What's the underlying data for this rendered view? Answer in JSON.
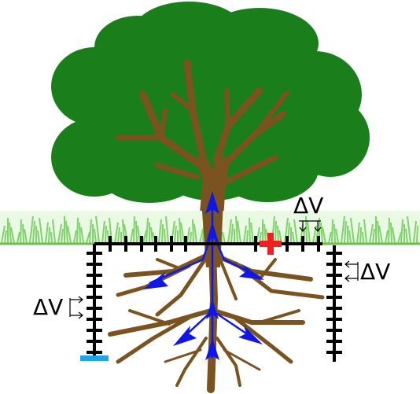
{
  "labels": {
    "dv_top": "ΔV",
    "dv_right": "ΔV",
    "dv_left": "ΔV"
  },
  "colors": {
    "canopy": "#1a7f1a",
    "trunk": "#7b5321",
    "grass": "#7fd36a",
    "ground_line": "#6bbf4e",
    "current_arrows": "#0f17e6",
    "plus_electrode": "#ee2020",
    "minus_electrode": "#22a4e8",
    "electrode_ruler": "#000000"
  },
  "icons": {
    "plus_electrode": "plus-sign",
    "minus_electrode": "minus-sign",
    "current_flow": "arrow-up"
  }
}
